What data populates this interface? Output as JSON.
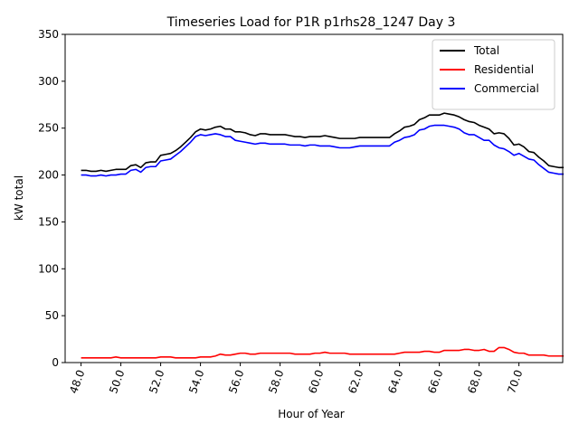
{
  "chart_data": {
    "type": "line",
    "title": "Timeseries Load for P1R p1rhs28_1247  Day 3",
    "xlabel": "Hour of Year",
    "ylabel": "kW total",
    "xlim": [
      47.2,
      72.2
    ],
    "ylim": [
      0,
      350
    ],
    "xticks": [
      48,
      50,
      52,
      54,
      56,
      58,
      60,
      62,
      64,
      66,
      68,
      70
    ],
    "xtick_labels": [
      "48.0",
      "50.0",
      "52.0",
      "54.0",
      "56.0",
      "58.0",
      "60.0",
      "62.0",
      "64.0",
      "66.0",
      "68.0",
      "70.0"
    ],
    "yticks": [
      0,
      50,
      100,
      150,
      200,
      250,
      300,
      350
    ],
    "ytick_labels": [
      "0",
      "50",
      "100",
      "150",
      "200",
      "250",
      "300",
      "350"
    ],
    "legend_position": "top-right",
    "x_start": 48.0,
    "x_step": 0.25,
    "series": [
      {
        "name": "Total",
        "color": "#000000",
        "values": [
          205,
          205,
          204,
          204,
          205,
          204,
          205,
          206,
          206,
          206,
          210,
          211,
          208,
          213,
          214,
          214,
          221,
          222,
          223,
          226,
          230,
          235,
          240,
          246,
          249,
          248,
          249,
          251,
          252,
          249,
          249,
          246,
          246,
          245,
          243,
          242,
          244,
          244,
          243,
          243,
          243,
          243,
          242,
          241,
          241,
          240,
          241,
          241,
          241,
          242,
          241,
          240,
          239,
          239,
          239,
          239,
          240,
          240,
          240,
          240,
          240,
          240,
          240,
          244,
          247,
          251,
          252,
          254,
          259,
          261,
          264,
          264,
          264,
          266,
          265,
          264,
          262,
          259,
          257,
          256,
          253,
          251,
          249,
          244,
          245,
          244,
          239,
          232,
          233,
          230,
          225,
          224,
          219,
          215,
          210,
          209,
          208,
          208
        ]
      },
      {
        "name": "Residential",
        "color": "#ff0000",
        "values": [
          5,
          5,
          5,
          5,
          5,
          5,
          5,
          6,
          5,
          5,
          5,
          5,
          5,
          5,
          5,
          5,
          6,
          6,
          6,
          5,
          5,
          5,
          5,
          5,
          6,
          6,
          6,
          7,
          9,
          8,
          8,
          9,
          10,
          10,
          9,
          9,
          10,
          10,
          10,
          10,
          10,
          10,
          10,
          9,
          9,
          9,
          9,
          10,
          10,
          11,
          10,
          10,
          10,
          10,
          9,
          9,
          9,
          9,
          9,
          9,
          9,
          9,
          9,
          9,
          10,
          11,
          11,
          11,
          11,
          12,
          12,
          11,
          11,
          13,
          13,
          13,
          13,
          14,
          14,
          13,
          13,
          14,
          12,
          12,
          16,
          16,
          14,
          11,
          10,
          10,
          8,
          8,
          8,
          8,
          7,
          7,
          7,
          7
        ]
      },
      {
        "name": "Commercial",
        "color": "#0000ff",
        "values": [
          200,
          200,
          199,
          199,
          200,
          199,
          200,
          200,
          201,
          201,
          205,
          206,
          203,
          208,
          209,
          209,
          215,
          216,
          217,
          221,
          225,
          230,
          235,
          241,
          243,
          242,
          243,
          244,
          243,
          241,
          241,
          237,
          236,
          235,
          234,
          233,
          234,
          234,
          233,
          233,
          233,
          233,
          232,
          232,
          232,
          231,
          232,
          232,
          231,
          231,
          231,
          230,
          229,
          229,
          229,
          230,
          231,
          231,
          231,
          231,
          231,
          231,
          231,
          235,
          237,
          240,
          241,
          243,
          248,
          249,
          252,
          253,
          253,
          253,
          252,
          251,
          249,
          245,
          243,
          243,
          240,
          237,
          237,
          232,
          229,
          228,
          225,
          221,
          223,
          220,
          217,
          216,
          211,
          207,
          203,
          202,
          201,
          201
        ]
      }
    ]
  }
}
